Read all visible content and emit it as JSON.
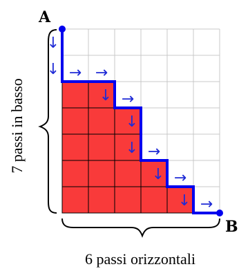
{
  "labels": {
    "start": "A",
    "end": "B",
    "vertical": "7 passi in basso",
    "horizontal": "6 passi orizzontali"
  },
  "grid": {
    "cols": 6,
    "rows": 7
  },
  "path": {
    "moves": [
      "D",
      "D",
      "R",
      "R",
      "D",
      "R",
      "D",
      "D",
      "R",
      "D",
      "R",
      "D",
      "R"
    ],
    "arrow_glyphs": {
      "D": "↓",
      "R": "→"
    }
  },
  "colors": {
    "region_fill": "#f93a3a",
    "path_stroke": "#0000ee",
    "arrow": "#1f2bd6",
    "grid_line": "#c8c8c8",
    "cell_line": "#000000"
  }
}
